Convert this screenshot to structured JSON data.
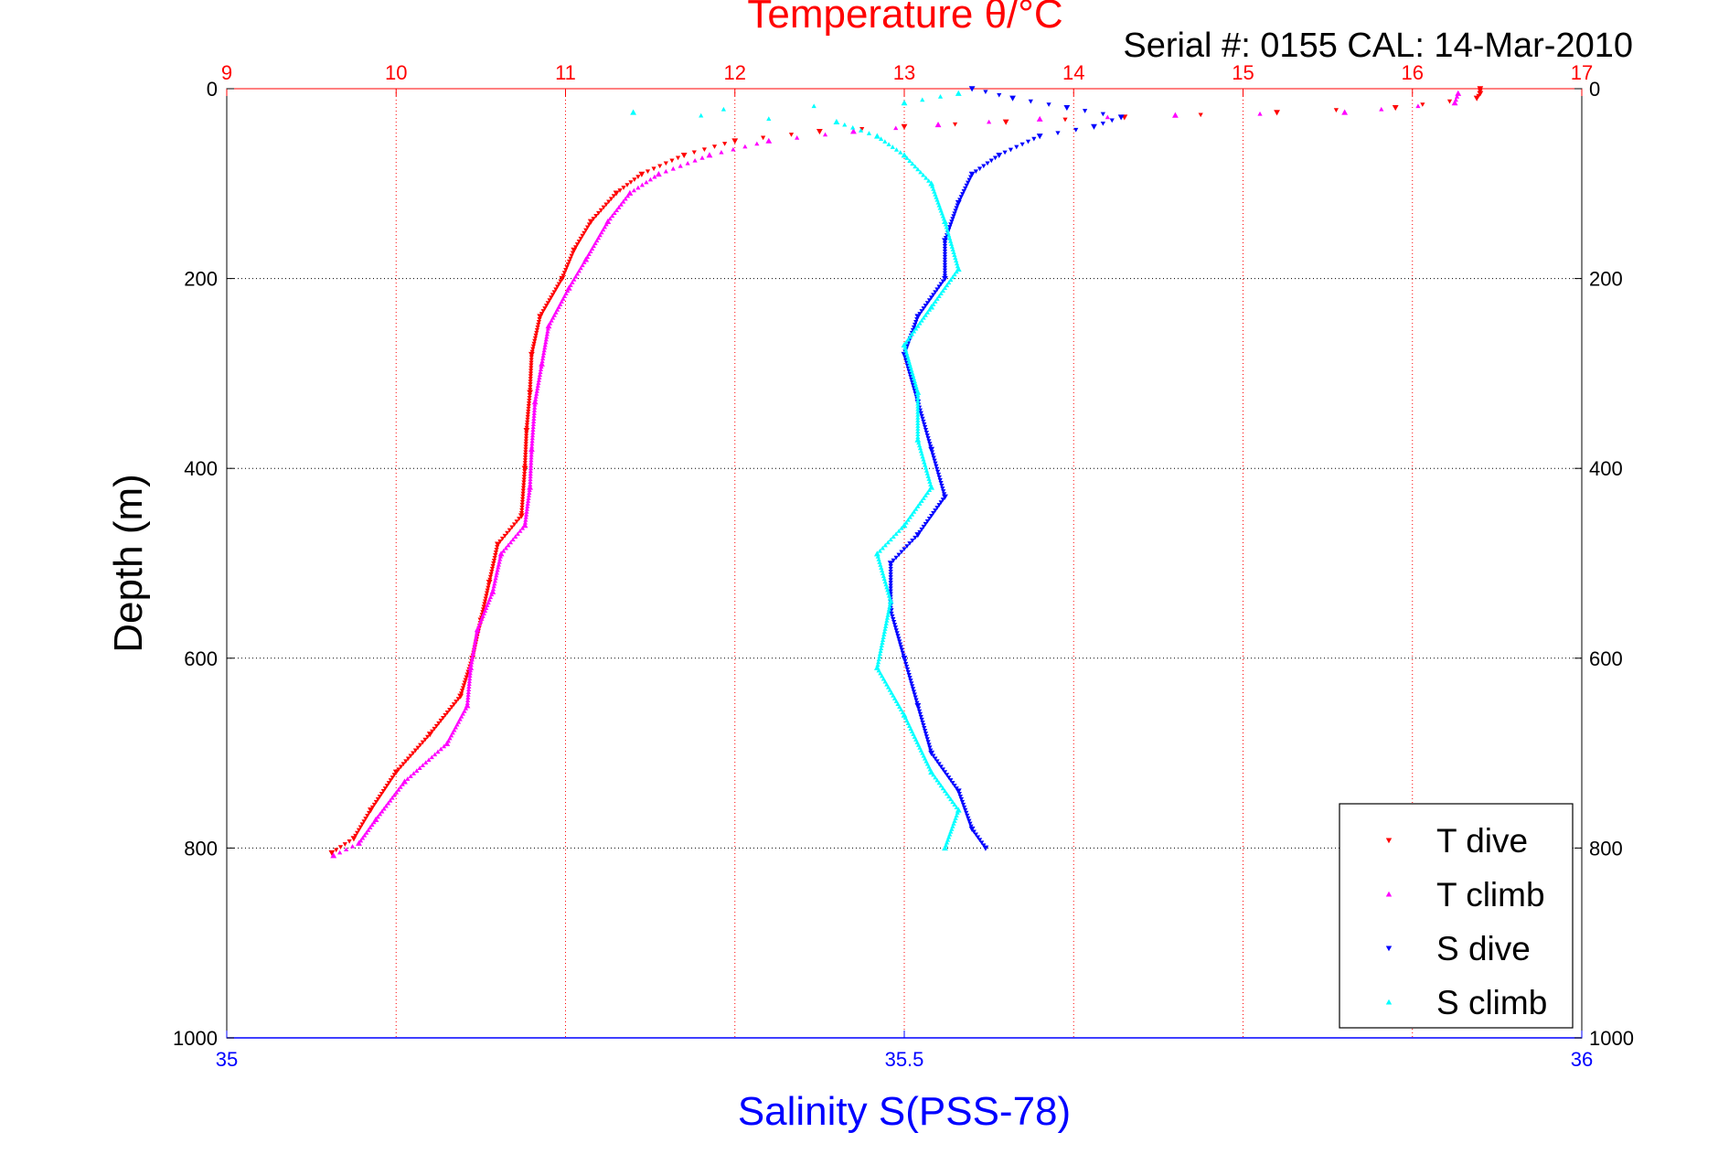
{
  "chart_data": {
    "type": "scatter",
    "title": "Temperature θ/°C",
    "subtitle": "Serial #: 0155  CAL: 14-Mar-2010",
    "ylabel": "Depth (m)",
    "xlabel": "Salinity S(PSS-78)",
    "top_axis": {
      "label": "Temperature θ/°C",
      "range": [
        9,
        17
      ],
      "ticks": [
        "9",
        "10",
        "11",
        "12",
        "13",
        "14",
        "15",
        "16",
        "17"
      ],
      "color": "#ff0000"
    },
    "bottom_axis": {
      "label": "Salinity S(PSS-78)",
      "range": [
        35,
        36
      ],
      "ticks": [
        "35",
        "35.5",
        "36"
      ],
      "color": "#0000ff"
    },
    "y_axis": {
      "label": "Depth (m)",
      "range": [
        0,
        1000
      ],
      "reversed": true,
      "ticks": [
        "0",
        "200",
        "400",
        "600",
        "800",
        "1000"
      ]
    },
    "grid": true,
    "legend_position": "bottom-right",
    "series": [
      {
        "name": "T dive",
        "axis": "temperature",
        "marker": "down-triangle",
        "color": "#ff0000",
        "points": [
          {
            "x": 16.4,
            "y": 0
          },
          {
            "x": 16.4,
            "y": 5
          },
          {
            "x": 16.38,
            "y": 10
          },
          {
            "x": 15.9,
            "y": 20
          },
          {
            "x": 15.2,
            "y": 25
          },
          {
            "x": 14.3,
            "y": 30
          },
          {
            "x": 13.6,
            "y": 35
          },
          {
            "x": 13.0,
            "y": 40
          },
          {
            "x": 12.5,
            "y": 45
          },
          {
            "x": 12.0,
            "y": 55
          },
          {
            "x": 11.7,
            "y": 70
          },
          {
            "x": 11.45,
            "y": 90
          },
          {
            "x": 11.3,
            "y": 110
          },
          {
            "x": 11.15,
            "y": 140
          },
          {
            "x": 11.05,
            "y": 170
          },
          {
            "x": 10.98,
            "y": 200
          },
          {
            "x": 10.85,
            "y": 240
          },
          {
            "x": 10.8,
            "y": 280
          },
          {
            "x": 10.79,
            "y": 320
          },
          {
            "x": 10.77,
            "y": 360
          },
          {
            "x": 10.76,
            "y": 400
          },
          {
            "x": 10.74,
            "y": 450
          },
          {
            "x": 10.6,
            "y": 480
          },
          {
            "x": 10.55,
            "y": 520
          },
          {
            "x": 10.5,
            "y": 560
          },
          {
            "x": 10.45,
            "y": 600
          },
          {
            "x": 10.38,
            "y": 640
          },
          {
            "x": 10.2,
            "y": 680
          },
          {
            "x": 10.0,
            "y": 720
          },
          {
            "x": 9.85,
            "y": 760
          },
          {
            "x": 9.75,
            "y": 790
          },
          {
            "x": 9.62,
            "y": 805
          }
        ]
      },
      {
        "name": "T climb",
        "axis": "temperature",
        "marker": "up-triangle",
        "color": "#ff00ff",
        "points": [
          {
            "x": 16.27,
            "y": 5
          },
          {
            "x": 16.25,
            "y": 15
          },
          {
            "x": 15.6,
            "y": 25
          },
          {
            "x": 14.6,
            "y": 28
          },
          {
            "x": 13.8,
            "y": 32
          },
          {
            "x": 13.2,
            "y": 38
          },
          {
            "x": 12.7,
            "y": 45
          },
          {
            "x": 12.2,
            "y": 55
          },
          {
            "x": 11.85,
            "y": 70
          },
          {
            "x": 11.55,
            "y": 90
          },
          {
            "x": 11.38,
            "y": 110
          },
          {
            "x": 11.25,
            "y": 140
          },
          {
            "x": 11.12,
            "y": 180
          },
          {
            "x": 11.02,
            "y": 210
          },
          {
            "x": 10.9,
            "y": 250
          },
          {
            "x": 10.86,
            "y": 290
          },
          {
            "x": 10.82,
            "y": 330
          },
          {
            "x": 10.8,
            "y": 380
          },
          {
            "x": 10.79,
            "y": 420
          },
          {
            "x": 10.76,
            "y": 460
          },
          {
            "x": 10.62,
            "y": 490
          },
          {
            "x": 10.57,
            "y": 530
          },
          {
            "x": 10.48,
            "y": 570
          },
          {
            "x": 10.44,
            "y": 610
          },
          {
            "x": 10.42,
            "y": 650
          },
          {
            "x": 10.3,
            "y": 690
          },
          {
            "x": 10.05,
            "y": 730
          },
          {
            "x": 9.88,
            "y": 770
          },
          {
            "x": 9.78,
            "y": 795
          },
          {
            "x": 9.63,
            "y": 808
          }
        ]
      },
      {
        "name": "S dive",
        "axis": "salinity",
        "marker": "down-triangle",
        "color": "#0000ff",
        "points": [
          {
            "x": 35.55,
            "y": 0
          },
          {
            "x": 35.58,
            "y": 10
          },
          {
            "x": 35.62,
            "y": 20
          },
          {
            "x": 35.66,
            "y": 30
          },
          {
            "x": 35.64,
            "y": 40
          },
          {
            "x": 35.6,
            "y": 50
          },
          {
            "x": 35.57,
            "y": 70
          },
          {
            "x": 35.55,
            "y": 90
          },
          {
            "x": 35.54,
            "y": 120
          },
          {
            "x": 35.53,
            "y": 160
          },
          {
            "x": 35.53,
            "y": 200
          },
          {
            "x": 35.51,
            "y": 240
          },
          {
            "x": 35.5,
            "y": 280
          },
          {
            "x": 35.51,
            "y": 330
          },
          {
            "x": 35.52,
            "y": 380
          },
          {
            "x": 35.53,
            "y": 430
          },
          {
            "x": 35.51,
            "y": 470
          },
          {
            "x": 35.49,
            "y": 500
          },
          {
            "x": 35.49,
            "y": 550
          },
          {
            "x": 35.5,
            "y": 600
          },
          {
            "x": 35.51,
            "y": 650
          },
          {
            "x": 35.52,
            "y": 700
          },
          {
            "x": 35.54,
            "y": 740
          },
          {
            "x": 35.55,
            "y": 780
          },
          {
            "x": 35.56,
            "y": 800
          }
        ]
      },
      {
        "name": "S climb",
        "axis": "salinity",
        "marker": "up-triangle",
        "color": "#00ffff",
        "points": [
          {
            "x": 35.54,
            "y": 5
          },
          {
            "x": 35.5,
            "y": 15
          },
          {
            "x": 35.3,
            "y": 25
          },
          {
            "x": 35.45,
            "y": 35
          },
          {
            "x": 35.48,
            "y": 50
          },
          {
            "x": 35.5,
            "y": 70
          },
          {
            "x": 35.52,
            "y": 100
          },
          {
            "x": 35.53,
            "y": 140
          },
          {
            "x": 35.54,
            "y": 190
          },
          {
            "x": 35.52,
            "y": 230
          },
          {
            "x": 35.5,
            "y": 270
          },
          {
            "x": 35.51,
            "y": 320
          },
          {
            "x": 35.51,
            "y": 370
          },
          {
            "x": 35.52,
            "y": 420
          },
          {
            "x": 35.5,
            "y": 460
          },
          {
            "x": 35.48,
            "y": 490
          },
          {
            "x": 35.49,
            "y": 540
          },
          {
            "x": 35.48,
            "y": 610
          },
          {
            "x": 35.5,
            "y": 660
          },
          {
            "x": 35.52,
            "y": 720
          },
          {
            "x": 35.54,
            "y": 760
          },
          {
            "x": 35.53,
            "y": 800
          }
        ]
      }
    ]
  }
}
